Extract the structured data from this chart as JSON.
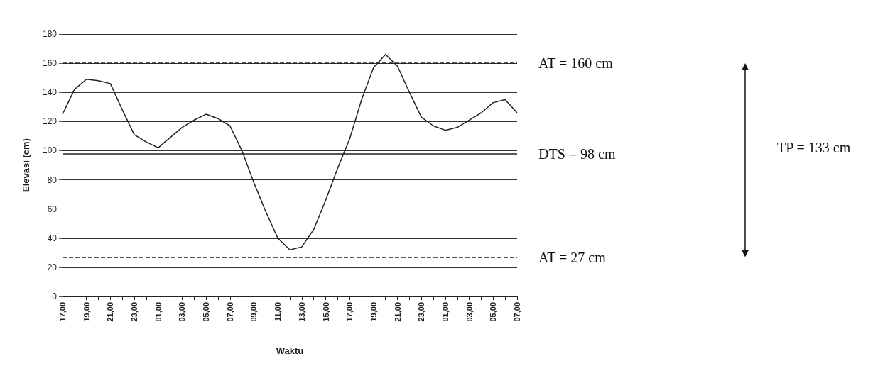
{
  "chart_data": {
    "type": "line",
    "xlabel": "Waktu",
    "ylabel": "Elevasi (cm)",
    "categories": [
      "17,00",
      null,
      "19,00",
      null,
      "21,00",
      null,
      "23,00",
      null,
      "01,00",
      null,
      "03,00",
      null,
      "05,00",
      null,
      "07,00",
      null,
      "09,00",
      null,
      "11,00",
      null,
      "13,00",
      null,
      "15,00",
      null,
      "17,00",
      null,
      "19,00",
      null,
      "21,00",
      null,
      "23,00",
      null,
      "01,00",
      null,
      "03,00",
      null,
      "05,00",
      null,
      "07,00"
    ],
    "series": [
      {
        "color": "#222222",
        "values": [
          125,
          142,
          149,
          148,
          146,
          128,
          111,
          106,
          102,
          109,
          116,
          121,
          125,
          122,
          117,
          100,
          78,
          58,
          40,
          32,
          34,
          46,
          66,
          88,
          108,
          135,
          157,
          166,
          158,
          140,
          123,
          117,
          114,
          116,
          121,
          126,
          133,
          135,
          126
        ]
      }
    ],
    "ylim": [
      0,
      180
    ],
    "yticks": [
      0,
      20,
      40,
      60,
      80,
      100,
      120,
      140,
      160,
      180
    ],
    "grid": "y",
    "marker": "none",
    "line_style": "solid",
    "ref_lines": [
      {
        "axis": "y",
        "value": 160,
        "label": "AT = 160 cm",
        "line_style": "dashed",
        "color": "#222222"
      },
      {
        "axis": "y",
        "value": 98,
        "label": "DTS = 98 cm",
        "line_style": "solid",
        "color": "#222222"
      },
      {
        "axis": "y",
        "value": 27,
        "label": "AT = 27 cm",
        "line_style": "dashed",
        "color": "#222222"
      }
    ],
    "annotations": [
      "TP = 133 cm"
    ]
  }
}
